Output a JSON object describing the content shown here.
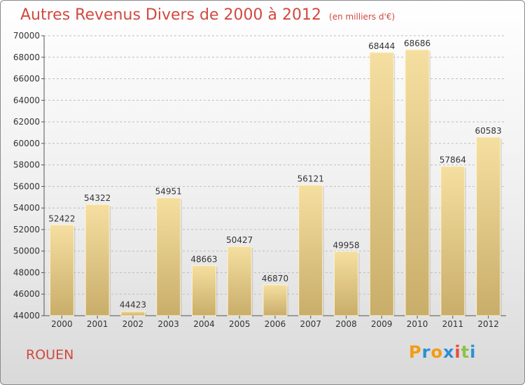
{
  "title": "Autres Revenus Divers de 2000 à 2012",
  "unit_note": "(en milliers d'€)",
  "city": "ROUEN",
  "logo": {
    "letters": [
      "P",
      "r",
      "o",
      "x",
      "i",
      "t",
      "i"
    ],
    "colors": [
      "#f39c12",
      "#2b8fd6",
      "#f39c12",
      "#2b8fd6",
      "#e74c3c",
      "#8bc34a",
      "#2b8fd6"
    ]
  },
  "colors": {
    "accent": "#d1493f",
    "bar_light": "#f5dfa0",
    "bar_dark": "#c9ad6a",
    "axis": "#555555"
  },
  "chart_data": {
    "type": "bar",
    "title": "Autres Revenus Divers de 2000 à 2012",
    "xlabel": "",
    "ylabel": "",
    "categories": [
      "2000",
      "2001",
      "2002",
      "2003",
      "2004",
      "2005",
      "2006",
      "2007",
      "2008",
      "2009",
      "2010",
      "2011",
      "2012"
    ],
    "values": [
      52422,
      54322,
      44423,
      54951,
      48663,
      50427,
      46870,
      56121,
      49958,
      68444,
      68686,
      57864,
      60583
    ],
    "ylim": [
      44000,
      70000
    ],
    "yticks": [
      44000,
      46000,
      48000,
      50000,
      52000,
      54000,
      56000,
      58000,
      60000,
      62000,
      64000,
      66000,
      68000,
      70000
    ],
    "grid": true,
    "legend": "none"
  }
}
